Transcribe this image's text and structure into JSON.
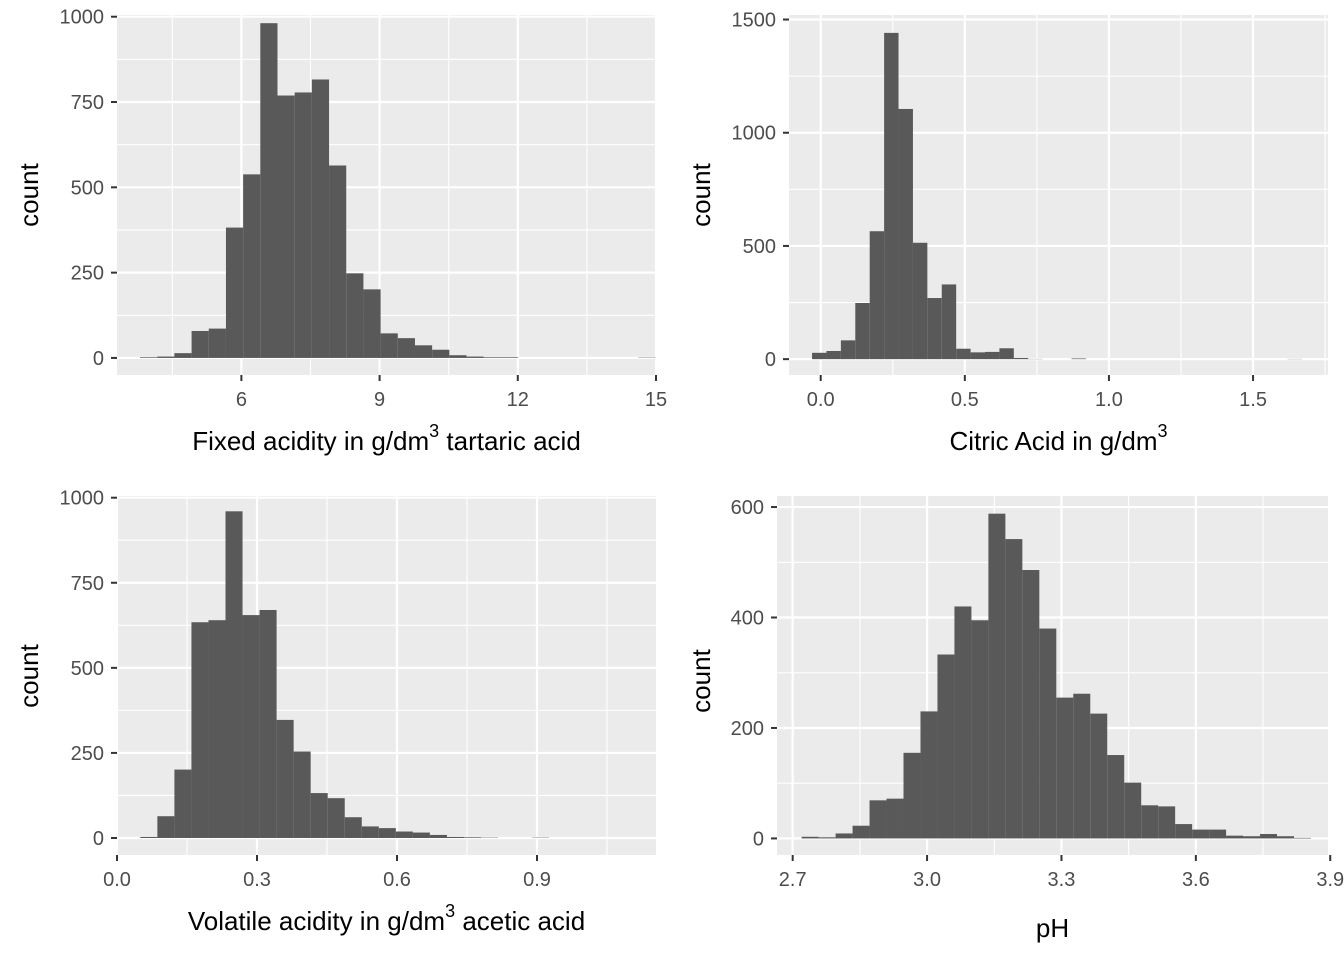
{
  "chart_data": [
    {
      "type": "bar",
      "histogram": true,
      "xlabel": "Fixed acidity in g/dm³ tartaric acid",
      "xlabel_parts": [
        "Fixed acidity in g/dm",
        "3",
        " tartaric acid"
      ],
      "ylabel": "count",
      "xlim": [
        3.3,
        15.0
      ],
      "ylim": [
        -50,
        1005
      ],
      "x_ticks": [
        6,
        9,
        12,
        15
      ],
      "x_tick_labels": [
        "6",
        "9",
        "12",
        "15"
      ],
      "y_ticks": [
        0,
        250,
        500,
        750,
        1000
      ],
      "y_tick_labels": [
        "0",
        "250",
        "500",
        "750",
        "1000"
      ],
      "bin_start": 3.8,
      "bin_width": 0.373,
      "values": [
        2,
        4,
        14,
        79,
        86,
        382,
        538,
        981,
        769,
        778,
        816,
        564,
        248,
        201,
        72,
        58,
        37,
        24,
        8,
        4,
        2,
        2,
        0,
        0,
        0,
        0,
        0,
        0,
        0,
        1
      ],
      "grid": true,
      "background": "#ebebeb",
      "bar_color": "#595959"
    },
    {
      "type": "bar",
      "histogram": true,
      "xlabel": "Citric Acid in g/dm³",
      "xlabel_parts": [
        "Citric Acid in g/dm",
        "3",
        ""
      ],
      "ylabel": "count",
      "xlim": [
        -0.11,
        1.76
      ],
      "ylim": [
        -70,
        1520
      ],
      "x_ticks": [
        0.0,
        0.5,
        1.0,
        1.5
      ],
      "x_tick_labels": [
        "0.0",
        "0.5",
        "1.0",
        "1.5"
      ],
      "y_ticks": [
        0,
        500,
        1000,
        1500
      ],
      "y_tick_labels": [
        "0",
        "500",
        "1000",
        "1500"
      ],
      "bin_start": -0.03,
      "bin_width": 0.05,
      "values": [
        28,
        36,
        83,
        248,
        565,
        1441,
        1105,
        514,
        270,
        330,
        46,
        30,
        32,
        48,
        5,
        1,
        0,
        0,
        3,
        0,
        0,
        0,
        0,
        0,
        0,
        0,
        0,
        0,
        0,
        0,
        0,
        0,
        0,
        1
      ],
      "grid": true,
      "background": "#ebebeb",
      "bar_color": "#595959"
    },
    {
      "type": "bar",
      "histogram": true,
      "xlabel": "Volatile acidity in g/dm³ acetic acid",
      "xlabel_parts": [
        "Volatile acidity in g/dm",
        "3",
        " acetic acid"
      ],
      "ylabel": "count",
      "xlim": [
        0.0,
        1.155
      ],
      "ylim": [
        -50,
        1005
      ],
      "x_ticks": [
        0.0,
        0.3,
        0.6,
        0.9
      ],
      "x_tick_labels": [
        "0.0",
        "0.3",
        "0.6",
        "0.9"
      ],
      "y_ticks": [
        0,
        250,
        500,
        750,
        1000
      ],
      "y_tick_labels": [
        "0",
        "250",
        "500",
        "750",
        "1000"
      ],
      "bin_start": 0.05,
      "bin_width": 0.0365,
      "values": [
        3,
        64,
        201,
        634,
        640,
        960,
        655,
        670,
        347,
        254,
        132,
        117,
        61,
        34,
        29,
        19,
        16,
        9,
        3,
        2,
        1,
        0,
        0,
        1,
        0,
        0,
        0,
        0,
        0,
        0
      ],
      "grid": true,
      "background": "#ebebeb",
      "bar_color": "#595959"
    },
    {
      "type": "bar",
      "histogram": true,
      "xlabel": "pH",
      "xlabel_parts": [
        "pH",
        "",
        ""
      ],
      "ylabel": "count",
      "xlim": [
        2.665,
        3.895
      ],
      "ylim": [
        -30,
        620
      ],
      "x_ticks": [
        2.7,
        3.0,
        3.3,
        3.6,
        3.9
      ],
      "x_tick_labels": [
        "2.7",
        "3.0",
        "3.3",
        "3.6",
        "3.9"
      ],
      "y_ticks": [
        0,
        200,
        400,
        600
      ],
      "y_tick_labels": [
        "0",
        "200",
        "400",
        "600"
      ],
      "bin_start": 2.72,
      "bin_width": 0.0379,
      "values": [
        3,
        2,
        9,
        23,
        69,
        72,
        155,
        230,
        333,
        420,
        395,
        588,
        542,
        486,
        380,
        255,
        262,
        226,
        151,
        101,
        60,
        58,
        26,
        16,
        16,
        5,
        4,
        8,
        4,
        1
      ],
      "grid": true,
      "background": "#ebebeb",
      "bar_color": "#595959"
    }
  ]
}
